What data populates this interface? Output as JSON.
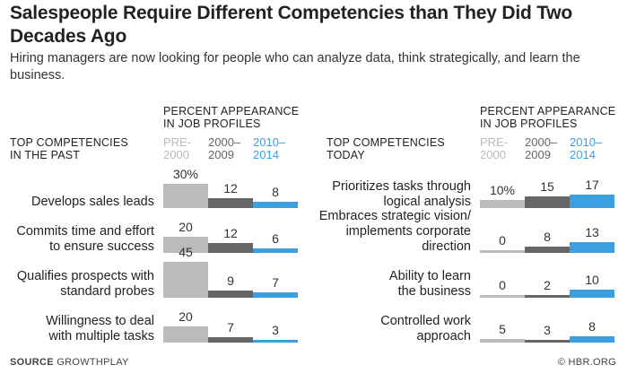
{
  "title": "Salespeople Require Different Competencies than They Did Two Decades Ago",
  "subtitle": "Hiring managers are now looking for people who can analyze data, think strategically, and learn the business.",
  "percent_header": "PERCENT APPEARANCE\nIN JOB PROFILES",
  "periods": [
    "PRE-\n2000",
    "2000–\n2009",
    "2010–\n2014"
  ],
  "colors": {
    "pre2000": "#bbbbbb",
    "p2000_2009": "#666666",
    "p2010_2014": "#3aa0e0"
  },
  "source_label": "SOURCE",
  "source_name": "GROWTHPLAY",
  "credit": "© HBR.ORG",
  "chart_data": [
    {
      "type": "table",
      "heading": "TOP COMPETENCIES\nIN THE PAST",
      "rows": [
        {
          "label": "Develops sales leads",
          "values": [
            30,
            12,
            8
          ],
          "display": [
            "30%",
            "12",
            "8"
          ]
        },
        {
          "label": "Commits time and effort\nto ensure success",
          "values": [
            20,
            12,
            6
          ],
          "display": [
            "20",
            "12",
            "6"
          ]
        },
        {
          "label": "Qualifies prospects with\nstandard probes",
          "values": [
            45,
            9,
            7
          ],
          "display": [
            "45",
            "9",
            "7"
          ]
        },
        {
          "label": "Willingness to deal\nwith multiple tasks",
          "values": [
            20,
            7,
            3
          ],
          "display": [
            "20",
            "7",
            "3"
          ]
        }
      ]
    },
    {
      "type": "table",
      "heading": "TOP COMPETENCIES\nTODAY",
      "rows": [
        {
          "label": "Prioritizes tasks through\nlogical analysis",
          "values": [
            10,
            15,
            17
          ],
          "display": [
            "10%",
            "15",
            "17"
          ]
        },
        {
          "label": "Embraces strategic vision/\nimplements corporate\ndirection",
          "values": [
            0,
            8,
            13
          ],
          "display": [
            "0",
            "8",
            "13"
          ]
        },
        {
          "label": "Ability to learn\nthe business",
          "values": [
            0,
            2,
            10
          ],
          "display": [
            "0",
            "2",
            "10"
          ]
        },
        {
          "label": "Controlled work\napproach",
          "values": [
            5,
            3,
            8
          ],
          "display": [
            "5",
            "3",
            "8"
          ]
        }
      ]
    }
  ]
}
